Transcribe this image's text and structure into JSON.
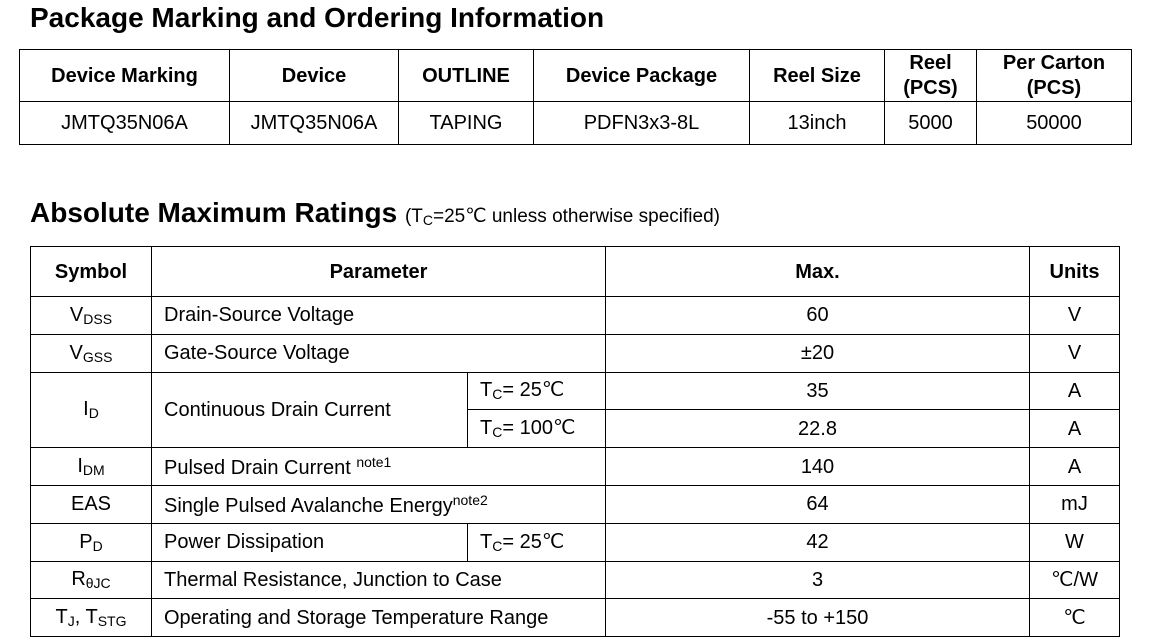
{
  "ordering": {
    "title": "Package Marking and Ordering Information",
    "headers": {
      "marking": "Device Marking",
      "device": "Device",
      "outline": "OUTLINE",
      "package": "Device Package",
      "reel_size": "Reel Size",
      "reel_l1": "Reel",
      "reel_l2": "(PCS)",
      "carton_l1": "Per Carton",
      "carton_l2": "(PCS)"
    },
    "row": {
      "marking": "JMTQ35N06A",
      "device": "JMTQ35N06A",
      "outline": "TAPING",
      "package": "PDFN3x3-8L",
      "reel_size": "13inch",
      "reel_pcs": "5000",
      "carton_pcs": "50000"
    }
  },
  "ratings": {
    "title": "Absolute Maximum Ratings",
    "note_pre": "(T",
    "note_sub": "C",
    "note_post": "=25℃ unless otherwise specified)",
    "headers": {
      "symbol": "Symbol",
      "parameter": "Parameter",
      "max": "Max.",
      "units": "Units"
    },
    "rows": {
      "vdss": {
        "sym": "V",
        "sub": "DSS",
        "param": "Drain-Source Voltage",
        "max": "60",
        "unit": "V"
      },
      "vgss": {
        "sym": "V",
        "sub": "GSS",
        "param": "Gate-Source Voltage",
        "max": "±20",
        "unit": "V"
      },
      "id": {
        "sym": "I",
        "sub": "D",
        "param": "Continuous Drain Current",
        "cond1_pre": "T",
        "cond1_sub": "C",
        "cond1_post": "= 25℃",
        "max1": "35",
        "unit1": "A",
        "cond2_pre": "T",
        "cond2_sub": "C",
        "cond2_post": "= 100℃",
        "max2": "22.8",
        "unit2": "A"
      },
      "idm": {
        "sym": "I",
        "sub": "DM",
        "param": "Pulsed Drain Current ",
        "note": "note1",
        "max": "140",
        "unit": "A"
      },
      "eas": {
        "sym": "EAS",
        "param": "Single Pulsed Avalanche Energy",
        "note": "note2",
        "max": "64",
        "unit": "mJ"
      },
      "pd": {
        "sym": "P",
        "sub": "D",
        "param": "Power Dissipation",
        "cond_pre": "T",
        "cond_sub": "C",
        "cond_post": "= 25℃",
        "max": "42",
        "unit": "W"
      },
      "rth": {
        "sym": "R",
        "sub": "θJC",
        "param": "Thermal Resistance, Junction to Case",
        "max": "3",
        "unit": "℃/W"
      },
      "tj": {
        "sym1": "T",
        "sub1": "J",
        "sep": ", ",
        "sym2": "T",
        "sub2": "STG",
        "param": "Operating and Storage Temperature Range",
        "max": "-55 to +150",
        "unit": "℃"
      }
    }
  }
}
